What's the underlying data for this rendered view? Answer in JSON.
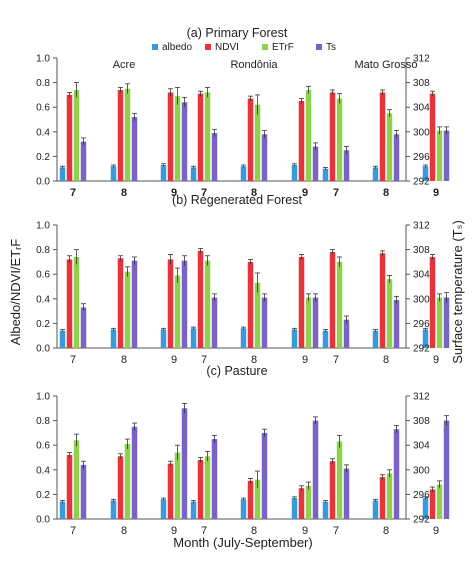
{
  "figure": {
    "ylabel_left": "Albedo/NDVI/ETᵣF",
    "ylabel_right": "Surface temperature (Tₛ)",
    "xlabel": "Month (July-September)"
  },
  "colors": {
    "albedo": "#3a9ad9",
    "NDVI": "#e5343b",
    "ETrF": "#8fd14f",
    "Ts": "#7a63c7"
  },
  "chart_data": [
    {
      "type": "bar",
      "title": "(a) Primary Forest",
      "groups": [
        "Acre",
        "Rondônia",
        "Mato Grosso"
      ],
      "categories": [
        "7",
        "8",
        "9"
      ],
      "legend": [
        "albedo",
        "NDVI",
        "ETrF",
        "Ts"
      ],
      "ylim_left": [
        0,
        1.0
      ],
      "yticks_left": [
        "0.0",
        "0.2",
        "0.4",
        "0.6",
        "0.8",
        "1.0"
      ],
      "ylim_right": [
        292,
        312
      ],
      "yticks_right": [
        "292",
        "296",
        "300",
        "304",
        "308",
        "312"
      ],
      "series": [
        {
          "name": "albedo",
          "axis": "left",
          "values": [
            [
              0.11,
              0.12,
              0.13
            ],
            [
              0.11,
              0.12,
              0.13
            ],
            [
              0.1,
              0.11,
              0.12
            ]
          ],
          "errors": [
            [
              0.01,
              0.01,
              0.01
            ],
            [
              0.01,
              0.01,
              0.01
            ],
            [
              0.01,
              0.01,
              0.01
            ]
          ]
        },
        {
          "name": "NDVI",
          "axis": "left",
          "values": [
            [
              0.7,
              0.74,
              0.72
            ],
            [
              0.71,
              0.67,
              0.65
            ],
            [
              0.72,
              0.72,
              0.71
            ]
          ],
          "errors": [
            [
              0.02,
              0.02,
              0.03
            ],
            [
              0.02,
              0.02,
              0.02
            ],
            [
              0.02,
              0.02,
              0.02
            ]
          ]
        },
        {
          "name": "ETrF",
          "axis": "left",
          "values": [
            [
              0.74,
              0.75,
              0.69
            ],
            [
              0.72,
              0.62,
              0.74
            ],
            [
              0.67,
              0.55,
              0.41
            ]
          ],
          "errors": [
            [
              0.06,
              0.04,
              0.07
            ],
            [
              0.04,
              0.08,
              0.03
            ],
            [
              0.04,
              0.03,
              0.03
            ]
          ]
        },
        {
          "name": "Ts",
          "axis": "right",
          "values": [
            [
              298.4,
              302.4,
              304.8
            ],
            [
              299.8,
              299.6,
              297.6
            ],
            [
              297.0,
              299.6,
              300.2
            ]
          ],
          "errors": [
            [
              0.6,
              0.6,
              0.8
            ],
            [
              0.6,
              0.6,
              0.6
            ],
            [
              0.6,
              0.6,
              0.6
            ]
          ]
        }
      ]
    },
    {
      "type": "bar",
      "title": "(b) Regenerated Forest",
      "groups": [
        "",
        "",
        ""
      ],
      "categories": [
        "7",
        "8",
        "9"
      ],
      "legend": [],
      "ylim_left": [
        0,
        1.0
      ],
      "yticks_left": [
        "0.0",
        "0.2",
        "0.4",
        "0.6",
        "0.8",
        "1.0"
      ],
      "ylim_right": [
        292,
        312
      ],
      "yticks_right": [
        "292",
        "296",
        "300",
        "304",
        "308",
        "312"
      ],
      "series": [
        {
          "name": "albedo",
          "axis": "left",
          "values": [
            [
              0.14,
              0.15,
              0.15
            ],
            [
              0.16,
              0.16,
              0.15
            ],
            [
              0.14,
              0.14,
              0.15
            ]
          ],
          "errors": [
            [
              0.01,
              0.01,
              0.01
            ],
            [
              0.01,
              0.01,
              0.01
            ],
            [
              0.01,
              0.01,
              0.01
            ]
          ]
        },
        {
          "name": "NDVI",
          "axis": "left",
          "values": [
            [
              0.72,
              0.73,
              0.72
            ],
            [
              0.79,
              0.7,
              0.74
            ],
            [
              0.78,
              0.77,
              0.74
            ]
          ],
          "errors": [
            [
              0.03,
              0.02,
              0.04
            ],
            [
              0.02,
              0.02,
              0.02
            ],
            [
              0.02,
              0.02,
              0.02
            ]
          ]
        },
        {
          "name": "ETrF",
          "axis": "left",
          "values": [
            [
              0.74,
              0.62,
              0.59
            ],
            [
              0.71,
              0.53,
              0.41
            ],
            [
              0.7,
              0.56,
              0.41
            ]
          ],
          "errors": [
            [
              0.06,
              0.04,
              0.06
            ],
            [
              0.04,
              0.08,
              0.03
            ],
            [
              0.04,
              0.03,
              0.03
            ]
          ]
        },
        {
          "name": "Ts",
          "axis": "right",
          "values": [
            [
              298.6,
              306.2,
              306.2
            ],
            [
              300.2,
              300.2,
              300.2
            ],
            [
              296.6,
              299.8,
              300.2
            ]
          ],
          "errors": [
            [
              0.6,
              0.6,
              0.8
            ],
            [
              0.6,
              0.6,
              0.6
            ],
            [
              0.6,
              0.6,
              0.8
            ]
          ]
        }
      ]
    },
    {
      "type": "bar",
      "title": "(c) Pasture",
      "groups": [
        "",
        "",
        ""
      ],
      "categories": [
        "7",
        "8",
        "9"
      ],
      "legend": [],
      "ylim_left": [
        0,
        1.0
      ],
      "yticks_left": [
        "0.0",
        "0.2",
        "0.4",
        "0.6",
        "0.8",
        "1.0"
      ],
      "ylim_right": [
        292,
        312
      ],
      "yticks_right": [
        "292",
        "296",
        "300",
        "304",
        "308",
        "312"
      ],
      "series": [
        {
          "name": "albedo",
          "axis": "left",
          "values": [
            [
              0.14,
              0.15,
              0.16
            ],
            [
              0.14,
              0.16,
              0.17
            ],
            [
              0.14,
              0.15,
              0.17
            ]
          ],
          "errors": [
            [
              0.01,
              0.01,
              0.01
            ],
            [
              0.01,
              0.01,
              0.01
            ],
            [
              0.01,
              0.01,
              0.01
            ]
          ]
        },
        {
          "name": "NDVI",
          "axis": "left",
          "values": [
            [
              0.52,
              0.51,
              0.45
            ],
            [
              0.48,
              0.31,
              0.25
            ],
            [
              0.47,
              0.34,
              0.24
            ]
          ],
          "errors": [
            [
              0.02,
              0.02,
              0.02
            ],
            [
              0.02,
              0.02,
              0.02
            ],
            [
              0.02,
              0.02,
              0.02
            ]
          ]
        },
        {
          "name": "ETrF",
          "axis": "left",
          "values": [
            [
              0.64,
              0.61,
              0.54
            ],
            [
              0.51,
              0.32,
              0.27
            ],
            [
              0.63,
              0.37,
              0.28
            ]
          ],
          "errors": [
            [
              0.05,
              0.04,
              0.06
            ],
            [
              0.04,
              0.07,
              0.03
            ],
            [
              0.05,
              0.03,
              0.03
            ]
          ]
        },
        {
          "name": "Ts",
          "axis": "right",
          "values": [
            [
              300.8,
              307.0,
              310.0
            ],
            [
              305.0,
              306.0,
              308.0
            ],
            [
              300.2,
              306.6,
              308.0
            ]
          ],
          "errors": [
            [
              0.6,
              0.6,
              0.8
            ],
            [
              0.6,
              0.6,
              0.6
            ],
            [
              0.6,
              0.6,
              0.8
            ]
          ]
        }
      ]
    }
  ]
}
